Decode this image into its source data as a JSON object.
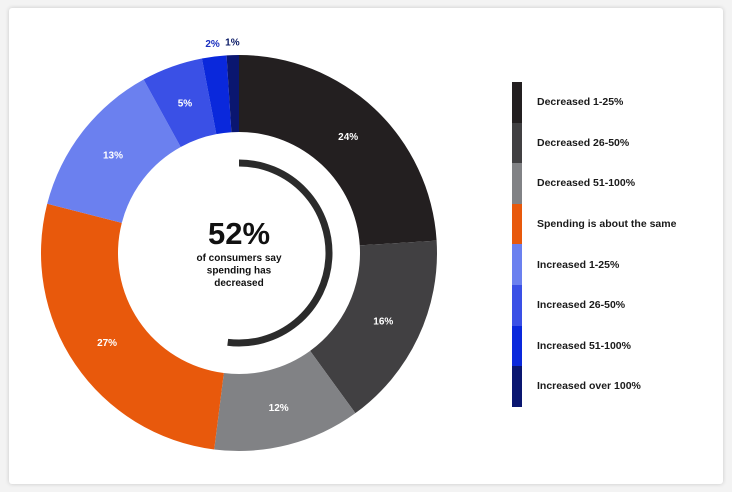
{
  "chart_data": {
    "type": "donut",
    "title": "",
    "center": {
      "value": "52%",
      "caption_lines": [
        "of consumers say",
        "spending has",
        "decreased"
      ],
      "arc_fraction": 0.52
    },
    "categories": [
      "Decreased 1-25%",
      "Decreased 26-50%",
      "Decreased 51-100%",
      "Spending is about the same",
      "Increased 1-25%",
      "Increased 26-50%",
      "Increased 51-100%",
      "Increased over 100%"
    ],
    "values": [
      24,
      16,
      12,
      27,
      13,
      5,
      2,
      1
    ],
    "value_labels": [
      "24%",
      "16%",
      "12%",
      "27%",
      "13%",
      "5%",
      "2%",
      "1%"
    ],
    "colors": [
      "#231f20",
      "#414042",
      "#818285",
      "#e8590c",
      "#6b80ef",
      "#3a50e6",
      "#0a28dc",
      "#0a1670"
    ],
    "legend_position": "right"
  }
}
